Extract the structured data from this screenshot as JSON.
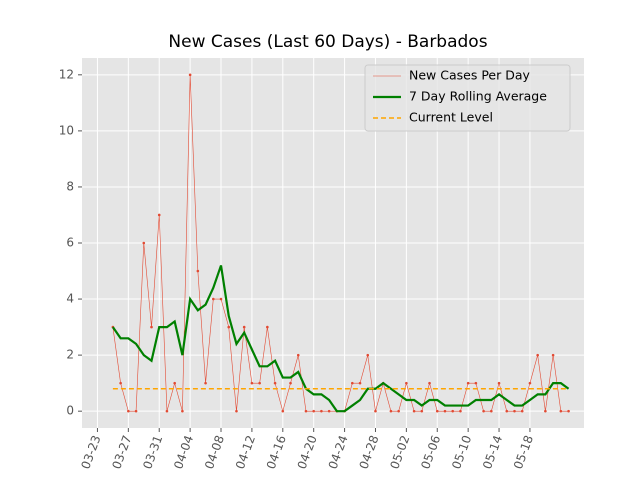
{
  "chart_data": {
    "type": "line",
    "title": "New Cases (Last 60 Days) - Barbados",
    "x": [
      "03-25",
      "03-26",
      "03-27",
      "03-28",
      "03-29",
      "03-30",
      "03-31",
      "04-01",
      "04-02",
      "04-03",
      "04-04",
      "04-05",
      "04-06",
      "04-07",
      "04-08",
      "04-09",
      "04-10",
      "04-11",
      "04-12",
      "04-13",
      "04-14",
      "04-15",
      "04-16",
      "04-17",
      "04-18",
      "04-19",
      "04-20",
      "04-21",
      "04-22",
      "04-23",
      "04-24",
      "04-25",
      "04-26",
      "04-27",
      "04-28",
      "04-29",
      "04-30",
      "05-01",
      "05-02",
      "05-03",
      "05-04",
      "05-05",
      "05-06",
      "05-07",
      "05-08",
      "05-09",
      "05-10",
      "05-11",
      "05-12",
      "05-13",
      "05-14",
      "05-15",
      "05-16",
      "05-17",
      "05-18",
      "05-19",
      "05-20",
      "05-21",
      "05-22",
      "05-23"
    ],
    "series": [
      {
        "name": "New Cases Per Day",
        "color": "#e24a33",
        "values": [
          3,
          1,
          0,
          0,
          6,
          3,
          7,
          0,
          1,
          0,
          12,
          5,
          1,
          4,
          4,
          3,
          0,
          3,
          1,
          1,
          3,
          1,
          0,
          1,
          2,
          0,
          0,
          0,
          0,
          0,
          0,
          1,
          1,
          2,
          0,
          1,
          0,
          0,
          1,
          0,
          0,
          1,
          0,
          0,
          0,
          0,
          1,
          1,
          0,
          0,
          1,
          0,
          0,
          0,
          1,
          2,
          0,
          2,
          0,
          0
        ]
      },
      {
        "name": "7 Day Rolling Average",
        "color": "#008000",
        "values": [
          3,
          2.6,
          2.6,
          2.4,
          2,
          1.8,
          3,
          3,
          3.2,
          2,
          4,
          3.6,
          3.8,
          4.4,
          5.2,
          3.4,
          2.4,
          2.8,
          2.2,
          1.6,
          1.6,
          1.8,
          1.2,
          1.2,
          1.4,
          0.8,
          0.6,
          0.6,
          0.4,
          0,
          0,
          0.2,
          0.4,
          0.8,
          0.8,
          1,
          0.8,
          0.6,
          0.4,
          0.4,
          0.2,
          0.4,
          0.4,
          0.2,
          0.2,
          0.2,
          0.2,
          0.4,
          0.4,
          0.4,
          0.6,
          0.4,
          0.2,
          0.2,
          0.4,
          0.6,
          0.6,
          1,
          1,
          0.8
        ]
      }
    ],
    "reference_line": {
      "name": "Current Level",
      "color": "#ffa500",
      "value": 0.8
    },
    "xlim": [
      "03-21",
      "05-25"
    ],
    "xticks": [
      "03-23",
      "03-27",
      "03-31",
      "04-04",
      "04-08",
      "04-12",
      "04-16",
      "04-20",
      "04-24",
      "04-28",
      "05-02",
      "05-06",
      "05-10",
      "05-14",
      "05-18"
    ],
    "ylim": [
      -0.6,
      12.6
    ],
    "yticks": [
      0,
      2,
      4,
      6,
      8,
      10,
      12
    ],
    "grid": true,
    "legend": "upper right"
  }
}
